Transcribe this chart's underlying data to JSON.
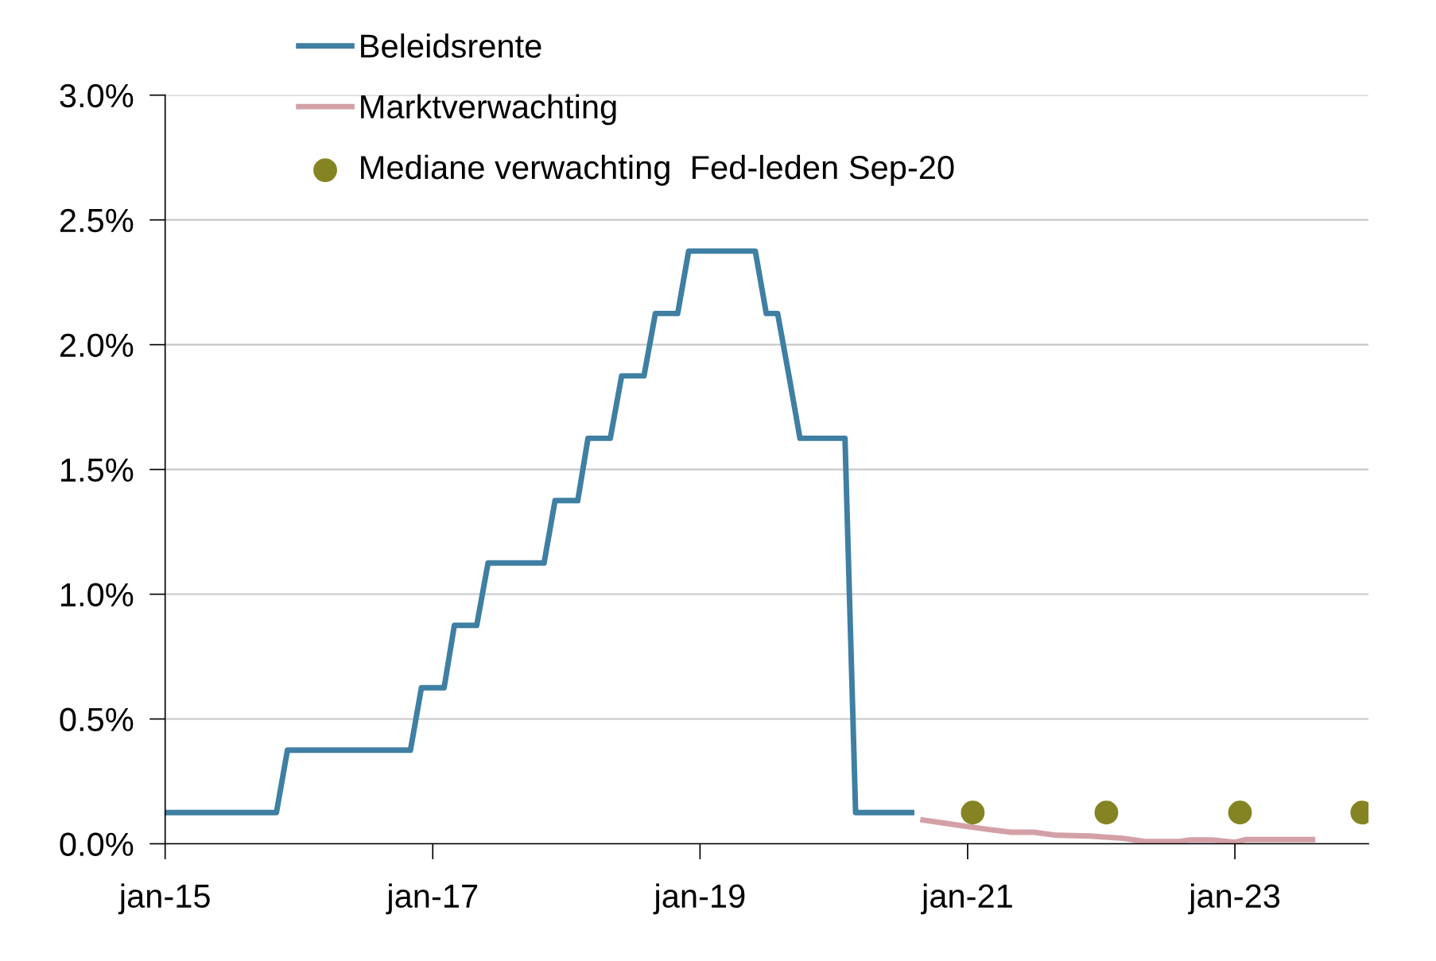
{
  "chart_data": {
    "type": "line",
    "xlim": [
      "2015-01",
      "2024-01"
    ],
    "xticks": [
      {
        "value": "2015-01",
        "label": "jan-15"
      },
      {
        "value": "2017-01",
        "label": "jan-17"
      },
      {
        "value": "2019-01",
        "label": "jan-19"
      },
      {
        "value": "2021-01",
        "label": "jan-21"
      },
      {
        "value": "2023-01",
        "label": "jan-23"
      }
    ],
    "ylim": [
      0,
      3
    ],
    "yticks": [
      {
        "value": 0,
        "label": "0.0%"
      },
      {
        "value": 0.5,
        "label": "0.5%"
      },
      {
        "value": 1,
        "label": "1.0%"
      },
      {
        "value": 1.5,
        "label": "1.5%"
      },
      {
        "value": 2,
        "label": "2.0%"
      },
      {
        "value": 2.5,
        "label": "2.5%"
      },
      {
        "value": 3,
        "label": "3.0%"
      }
    ],
    "grid": "y",
    "legend": "top left",
    "series": [
      {
        "name": "Beleidsrente",
        "color": "#3f7fa3",
        "x": [
          "2015-01",
          "2015-11",
          "2015-12",
          "2016-11",
          "2016-12",
          "2017-02",
          "2017-03",
          "2017-05",
          "2017-06",
          "2017-11",
          "2017-12",
          "2018-02",
          "2018-03",
          "2018-05",
          "2018-06",
          "2018-08",
          "2018-09",
          "2018-11",
          "2018-12",
          "2019-06",
          "2019-07",
          "2019-08",
          "2019-09",
          "2019-10",
          "2020-02",
          "2020-03",
          "2020-08"
        ],
        "values": [
          0.125,
          0.125,
          0.375,
          0.375,
          0.625,
          0.625,
          0.875,
          0.875,
          1.125,
          1.125,
          1.375,
          1.375,
          1.625,
          1.625,
          1.875,
          1.875,
          2.125,
          2.125,
          2.375,
          2.375,
          2.125,
          2.125,
          1.875,
          1.625,
          1.625,
          0.125,
          0.125
        ]
      },
      {
        "name": "Marktverwachting",
        "color": "#d4a0a7",
        "x": [
          "2020-09",
          "2020-11",
          "2021-01",
          "2021-03",
          "2021-05",
          "2021-07",
          "2021-09",
          "2021-12",
          "2022-03",
          "2022-05",
          "2022-08",
          "2022-09",
          "2022-11",
          "2023-01",
          "2023-02",
          "2023-08"
        ],
        "values": [
          0.095,
          0.082,
          0.069,
          0.057,
          0.046,
          0.046,
          0.034,
          0.031,
          0.022,
          0.009,
          0.009,
          0.015,
          0.015,
          0.006,
          0.017,
          0.017
        ]
      },
      {
        "name": "Mediane verwachting  Fed-leden Sep-20",
        "color": "#848522",
        "type": "scatter",
        "marker": "circle",
        "x": [
          "2021-01-15",
          "2022-01-15",
          "2023-01-15",
          "2023-12-15"
        ],
        "values": [
          0.125,
          0.125,
          0.125,
          0.125
        ]
      }
    ]
  }
}
